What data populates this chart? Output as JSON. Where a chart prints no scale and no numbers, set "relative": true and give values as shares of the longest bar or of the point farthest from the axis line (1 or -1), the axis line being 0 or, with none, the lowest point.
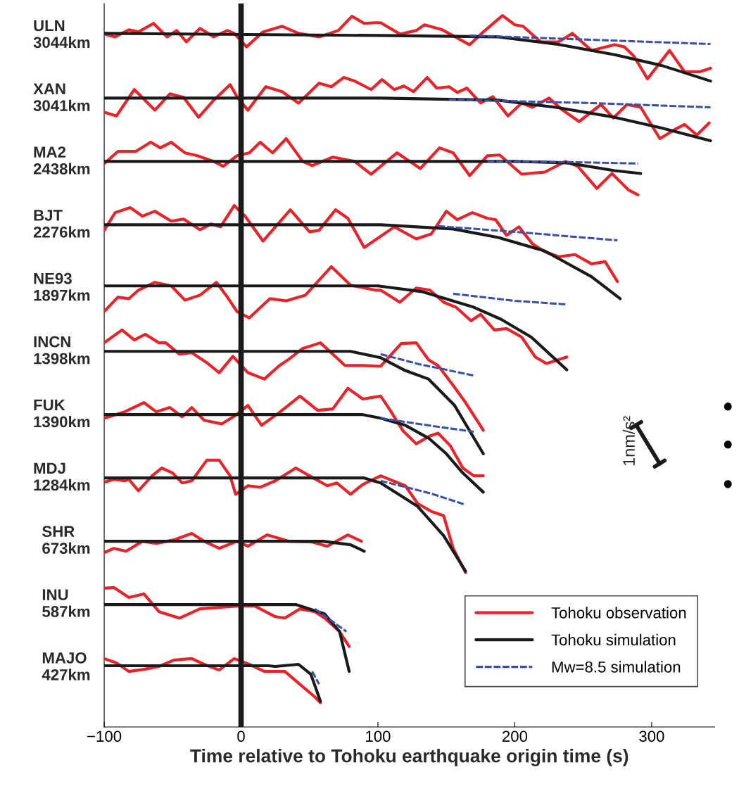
{
  "chart_data": {
    "type": "line",
    "xlabel": "Time relative to Tohoku earthquake origin time (s)",
    "xlim": [
      -100,
      346
    ],
    "xticks": [
      {
        "value": -100,
        "label": "−100"
      },
      0,
      100,
      200,
      300
    ],
    "relative": true,
    "grid": false,
    "legend": "bottom right",
    "marker": "none",
    "ref_lines": [
      {
        "axis": "x",
        "value": 0,
        "color": "#1a1a1a",
        "line_style": "solid"
      }
    ],
    "annotations": [
      "1nm/s²",
      "ULN\n3044km",
      "XAN\n3041km",
      "MA2\n2438km",
      "BJT\n2276km",
      "NE93\n1897km",
      "INCN\n1398km",
      "FUK\n1390km",
      "MDJ\n1284km",
      "SHR\n673km",
      "INU\n587km",
      "MAJO\n427km"
    ],
    "series": [
      {
        "name": "Tohoku observation",
        "color": "#e8232a",
        "line_style": "solid",
        "x": [
          -100,
          -92,
          -82,
          -75,
          -64,
          -54,
          -47,
          -40,
          -30,
          -20,
          -10,
          -5,
          4,
          16,
          30,
          42,
          57,
          71,
          81,
          90,
          98,
          102,
          116,
          128,
          134,
          147,
          167,
          177,
          191,
          200,
          206,
          219,
          232,
          242,
          256,
          273,
          280,
          287,
          297,
          313,
          324,
          335,
          343
        ],
        "values": [
          0.974,
          0.97,
          0.98,
          0.977,
          0.989,
          0.97,
          0.979,
          0.963,
          0.982,
          0.97,
          0.979,
          0.975,
          0.956,
          0.977,
          0.985,
          0.975,
          0.97,
          0.979,
          0.999,
          0.989,
          0.99,
          0.99,
          0.974,
          0.979,
          0.987,
          0.98,
          0.959,
          0.977,
          1.0,
          0.987,
          0.985,
          0.963,
          0.963,
          0.975,
          0.951,
          0.959,
          0.956,
          0.943,
          0.911,
          0.951,
          0.921,
          0.921,
          0.926
        ]
      },
      {
        "name": "Tohoku simulation",
        "color": "#1a1a1a",
        "line_style": "solid",
        "x": [
          -100,
          100,
          188,
          230,
          273,
          307,
          343
        ],
        "values": [
          0.975,
          0.972,
          0.97,
          0.96,
          0.945,
          0.93,
          0.908
        ]
      },
      {
        "name": "Mw=8.5 simulation",
        "color": "#3a4fa8",
        "line_style": "dashed",
        "x": [
          167,
          256,
          343
        ],
        "values": [
          0.972,
          0.966,
          0.96
        ]
      },
      {
        "color": "#e8232a",
        "line_style": "solid",
        "x": [
          -100,
          -91,
          -78,
          -63,
          -52,
          -42,
          -31,
          -20,
          -8,
          -3,
          5,
          18,
          30,
          42,
          57,
          66,
          75,
          83,
          95,
          103,
          112,
          119,
          126,
          136,
          143,
          152,
          158,
          165,
          175,
          184,
          195,
          205,
          213,
          225,
          235,
          247,
          263,
          272,
          282,
          292,
          306,
          318,
          324,
          333,
          342
        ],
        "values": [
          0.864,
          0.859,
          0.896,
          0.867,
          0.89,
          0.885,
          0.857,
          0.881,
          0.903,
          0.886,
          0.867,
          0.9,
          0.893,
          0.877,
          0.905,
          0.9,
          0.913,
          0.908,
          0.896,
          0.91,
          0.896,
          0.901,
          0.893,
          0.913,
          0.898,
          0.9,
          0.892,
          0.898,
          0.877,
          0.886,
          0.859,
          0.877,
          0.871,
          0.884,
          0.867,
          0.851,
          0.875,
          0.856,
          0.875,
          0.871,
          0.827,
          0.841,
          0.847,
          0.832,
          0.849
        ]
      },
      {
        "color": "#1a1a1a",
        "line_style": "solid",
        "x": [
          -100,
          102,
          188,
          230,
          273,
          307,
          343
        ],
        "values": [
          0.884,
          0.884,
          0.881,
          0.871,
          0.857,
          0.842,
          0.824
        ]
      },
      {
        "color": "#3a4fa8",
        "line_style": "dashed",
        "x": [
          152,
          256,
          343
        ],
        "values": [
          0.882,
          0.877,
          0.871
        ]
      },
      {
        "color": "#e8232a",
        "line_style": "solid",
        "x": [
          -100,
          -90,
          -77,
          -66,
          -59,
          -51,
          -41,
          -32,
          -20,
          -13,
          -3,
          6,
          14,
          23,
          33,
          45,
          52,
          67,
          83,
          95,
          114,
          131,
          145,
          155,
          167,
          180,
          189,
          205,
          222,
          237,
          246,
          260,
          271,
          283,
          290
        ],
        "values": [
          0.792,
          0.809,
          0.809,
          0.822,
          0.814,
          0.822,
          0.807,
          0.803,
          0.795,
          0.788,
          0.803,
          0.807,
          0.822,
          0.807,
          0.827,
          0.795,
          0.789,
          0.801,
          0.795,
          0.777,
          0.807,
          0.785,
          0.814,
          0.807,
          0.775,
          0.803,
          0.804,
          0.777,
          0.78,
          0.795,
          0.788,
          0.757,
          0.778,
          0.755,
          0.748
        ]
      },
      {
        "color": "#1a1a1a",
        "line_style": "solid",
        "x": [
          -100,
          200,
          238,
          273,
          292
        ],
        "values": [
          0.795,
          0.795,
          0.793,
          0.782,
          0.778
        ]
      },
      {
        "color": "#3a4fa8",
        "line_style": "dashed",
        "x": [
          180,
          240,
          290
        ],
        "values": [
          0.795,
          0.794,
          0.792
        ]
      },
      {
        "color": "#e8232a",
        "line_style": "solid",
        "x": [
          -100,
          -92,
          -81,
          -72,
          -63,
          -51,
          -42,
          -30,
          -22,
          -15,
          -5,
          3,
          16,
          36,
          50,
          57,
          69,
          78,
          90,
          112,
          128,
          139,
          150,
          158,
          169,
          180,
          186,
          194,
          203,
          213,
          222,
          232,
          244,
          256,
          266,
          275
        ],
        "values": [
          0.698,
          0.723,
          0.73,
          0.718,
          0.725,
          0.711,
          0.714,
          0.699,
          0.707,
          0.703,
          0.733,
          0.718,
          0.683,
          0.727,
          0.696,
          0.698,
          0.727,
          0.715,
          0.674,
          0.703,
          0.686,
          0.693,
          0.725,
          0.713,
          0.723,
          0.715,
          0.713,
          0.691,
          0.703,
          0.679,
          0.668,
          0.661,
          0.664,
          0.651,
          0.654,
          0.626
        ]
      },
      {
        "color": "#1a1a1a",
        "line_style": "solid",
        "x": [
          -100,
          102,
          155,
          188,
          222,
          256,
          277
        ],
        "values": [
          0.706,
          0.706,
          0.7,
          0.688,
          0.669,
          0.633,
          0.602
        ]
      },
      {
        "color": "#3a4fa8",
        "line_style": "dashed",
        "x": [
          144,
          200,
          275
        ],
        "values": [
          0.704,
          0.696,
          0.684
        ]
      },
      {
        "color": "#e8232a",
        "line_style": "solid",
        "x": [
          -100,
          -90,
          -82,
          -75,
          -63,
          -51,
          -41,
          -30,
          -18,
          -11,
          -3,
          6,
          21,
          33,
          47,
          66,
          80,
          98,
          102,
          116,
          128,
          138,
          148,
          157,
          168,
          175,
          185,
          194,
          205,
          215,
          223,
          230,
          238
        ],
        "values": [
          0.584,
          0.604,
          0.602,
          0.614,
          0.625,
          0.62,
          0.6,
          0.607,
          0.625,
          0.607,
          0.584,
          0.575,
          0.602,
          0.599,
          0.607,
          0.647,
          0.621,
          0.614,
          0.614,
          0.597,
          0.617,
          0.614,
          0.597,
          0.59,
          0.571,
          0.58,
          0.558,
          0.56,
          0.548,
          0.52,
          0.511,
          0.515,
          0.52
        ]
      },
      {
        "color": "#1a1a1a",
        "line_style": "solid",
        "x": [
          -100,
          100,
          132,
          170,
          190,
          212,
          238
        ],
        "values": [
          0.62,
          0.62,
          0.612,
          0.59,
          0.573,
          0.548,
          0.502
        ]
      },
      {
        "color": "#3a4fa8",
        "line_style": "dashed",
        "x": [
          155,
          200,
          237
        ],
        "values": [
          0.609,
          0.599,
          0.594
        ]
      },
      {
        "color": "#e8232a",
        "line_style": "solid",
        "x": [
          -100,
          -87,
          -78,
          -70,
          -60,
          -55,
          -45,
          -36,
          -25,
          -16,
          -6,
          5,
          17,
          28,
          35,
          45,
          58,
          76,
          89,
          102,
          117,
          128,
          137,
          144,
          155,
          164,
          177
        ],
        "values": [
          0.54,
          0.558,
          0.544,
          0.552,
          0.54,
          0.54,
          0.524,
          0.526,
          0.512,
          0.498,
          0.521,
          0.498,
          0.489,
          0.508,
          0.517,
          0.532,
          0.54,
          0.508,
          0.508,
          0.507,
          0.539,
          0.54,
          0.516,
          0.508,
          0.48,
          0.456,
          0.417
        ]
      },
      {
        "color": "#1a1a1a",
        "line_style": "solid",
        "x": [
          -100,
          80,
          102,
          120,
          137,
          156,
          177
        ],
        "values": [
          0.528,
          0.528,
          0.519,
          0.501,
          0.489,
          0.452,
          0.384
        ]
      },
      {
        "color": "#3a4fa8",
        "line_style": "dashed",
        "x": [
          102,
          130,
          170
        ],
        "values": [
          0.524,
          0.51,
          0.494
        ]
      },
      {
        "color": "#e8232a",
        "line_style": "solid",
        "x": [
          -100,
          -85,
          -71,
          -62,
          -52,
          -43,
          -36,
          -27,
          -14,
          -4,
          5,
          15,
          28,
          43,
          56,
          67,
          78,
          89,
          102,
          109,
          118,
          128,
          138,
          144,
          153,
          162,
          170,
          177
        ],
        "values": [
          0.434,
          0.443,
          0.456,
          0.443,
          0.449,
          0.436,
          0.449,
          0.431,
          0.426,
          0.438,
          0.452,
          0.424,
          0.442,
          0.465,
          0.445,
          0.447,
          0.476,
          0.461,
          0.465,
          0.445,
          0.417,
          0.398,
          0.409,
          0.413,
          0.395,
          0.364,
          0.353,
          0.353
        ]
      },
      {
        "color": "#1a1a1a",
        "line_style": "solid",
        "x": [
          -100,
          89,
          102,
          120,
          137,
          150,
          162,
          177
        ],
        "values": [
          0.439,
          0.439,
          0.434,
          0.424,
          0.406,
          0.384,
          0.357,
          0.33
        ]
      },
      {
        "color": "#3a4fa8",
        "line_style": "dashed",
        "x": [
          102,
          140,
          170
        ],
        "values": [
          0.434,
          0.423,
          0.415
        ]
      },
      {
        "color": "#e8232a",
        "line_style": "solid",
        "x": [
          -100,
          -93,
          -85,
          -82,
          -75,
          -65,
          -58,
          -50,
          -43,
          -36,
          -25,
          -16,
          -8,
          -4,
          5,
          14,
          25,
          40,
          50,
          63,
          70,
          80,
          89,
          102,
          120,
          129,
          139,
          148,
          155,
          164
        ],
        "values": [
          0.344,
          0.348,
          0.346,
          0.348,
          0.332,
          0.353,
          0.364,
          0.357,
          0.343,
          0.346,
          0.375,
          0.375,
          0.353,
          0.327,
          0.339,
          0.337,
          0.346,
          0.364,
          0.353,
          0.339,
          0.343,
          0.327,
          0.341,
          0.353,
          0.339,
          0.314,
          0.303,
          0.297,
          0.251,
          0.217
        ]
      },
      {
        "color": "#1a1a1a",
        "line_style": "solid",
        "x": [
          -100,
          90,
          102,
          129,
          148,
          164
        ],
        "values": [
          0.35,
          0.35,
          0.343,
          0.31,
          0.269,
          0.219
        ]
      },
      {
        "color": "#3a4fa8",
        "line_style": "dashed",
        "x": [
          102,
          139,
          163
        ],
        "values": [
          0.346,
          0.328,
          0.313
        ]
      },
      {
        "color": "#e8232a",
        "line_style": "solid",
        "x": [
          -100,
          -93,
          -84,
          -72,
          -62,
          -49,
          -36,
          -27,
          -16,
          -3,
          5,
          19,
          35,
          52,
          63,
          78,
          88
        ],
        "values": [
          0.245,
          0.251,
          0.247,
          0.261,
          0.258,
          0.263,
          0.272,
          0.261,
          0.251,
          0.261,
          0.254,
          0.27,
          0.261,
          0.26,
          0.254,
          0.27,
          0.261
        ]
      },
      {
        "color": "#1a1a1a",
        "line_style": "solid",
        "x": [
          -100,
          60,
          80,
          90
        ],
        "values": [
          0.261,
          0.261,
          0.256,
          0.247
        ]
      },
      {
        "color": "#e8232a",
        "line_style": "solid",
        "x": [
          -100,
          -93,
          -82,
          -71,
          -60,
          -45,
          -30,
          -16,
          -3,
          10,
          25,
          32,
          43,
          54,
          61,
          72,
          79
        ],
        "values": [
          0.195,
          0.196,
          0.182,
          0.187,
          0.162,
          0.153,
          0.166,
          0.168,
          0.17,
          0.17,
          0.155,
          0.153,
          0.166,
          0.162,
          0.153,
          0.134,
          0.113
        ]
      },
      {
        "color": "#1a1a1a",
        "line_style": "solid",
        "x": [
          -100,
          40,
          61,
          72,
          79
        ],
        "values": [
          0.172,
          0.172,
          0.159,
          0.134,
          0.078
        ]
      },
      {
        "color": "#3a4fa8",
        "line_style": "dashed",
        "x": [
          54,
          77
        ],
        "values": [
          0.166,
          0.134
        ]
      },
      {
        "color": "#e8232a",
        "line_style": "solid",
        "x": [
          -100,
          -91,
          -82,
          -71,
          -60,
          -49,
          -36,
          -27,
          -16,
          -5,
          6,
          17,
          32,
          43,
          54,
          58
        ],
        "values": [
          0.096,
          0.09,
          0.078,
          0.081,
          0.085,
          0.094,
          0.096,
          0.088,
          0.08,
          0.096,
          0.088,
          0.078,
          0.078,
          0.06,
          0.042,
          0.034
        ]
      },
      {
        "color": "#1a1a1a",
        "line_style": "solid",
        "x": [
          -100,
          20,
          25,
          42,
          51,
          58
        ],
        "values": [
          0.086,
          0.086,
          0.085,
          0.088,
          0.074,
          0.036
        ]
      },
      {
        "color": "#3a4fa8",
        "line_style": "dashed",
        "x": [
          52,
          57
        ],
        "values": [
          0.078,
          0.06
        ]
      }
    ]
  }
}
